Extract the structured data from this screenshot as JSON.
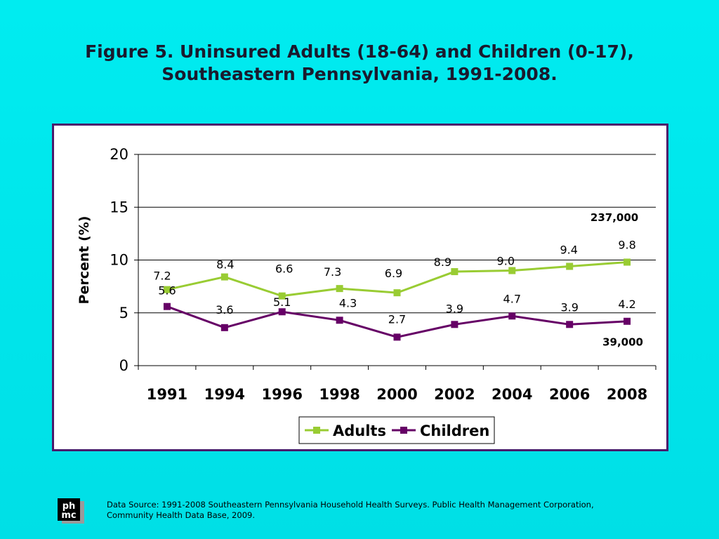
{
  "title_line1": "Figure 5. Uninsured Adults (18-64) and Children (0-17),",
  "title_line2": "Southeastern Pennsylvania, 1991-2008.",
  "source_text": "Data Source: 1991-2008 Southeastern Pennsylvania Household Health Surveys. Public Health Management Corporation, Community Health Data Base, 2009.",
  "logo_text": "ph mc",
  "chart_data": {
    "type": "line",
    "title": "",
    "xlabel": "",
    "ylabel": "Percent (%)",
    "categories": [
      "1991",
      "1994",
      "1996",
      "1998",
      "2000",
      "2002",
      "2004",
      "2006",
      "2008"
    ],
    "ylim": [
      0,
      20
    ],
    "yticks": [
      0,
      5,
      10,
      15,
      20
    ],
    "grid": true,
    "legend_position": "bottom",
    "series": [
      {
        "name": "Adults",
        "color": "#99cc33",
        "values": [
          7.2,
          8.4,
          6.6,
          7.3,
          6.9,
          8.9,
          9.0,
          9.4,
          9.8
        ],
        "labels": [
          "7.2",
          "8.4",
          "6.6",
          "7.3",
          "6.9",
          "8.9",
          "9.0",
          "9.4",
          "9.8"
        ]
      },
      {
        "name": "Children",
        "color": "#660066",
        "values": [
          5.6,
          3.6,
          5.1,
          4.3,
          2.7,
          3.9,
          4.7,
          3.9,
          4.2
        ],
        "labels": [
          "5.6",
          "3.6",
          "5.1",
          "4.3",
          "2.7",
          "3.9",
          "4.7",
          "3.9",
          "4.2"
        ]
      }
    ],
    "annotations": [
      "237,000",
      "39,000"
    ]
  }
}
